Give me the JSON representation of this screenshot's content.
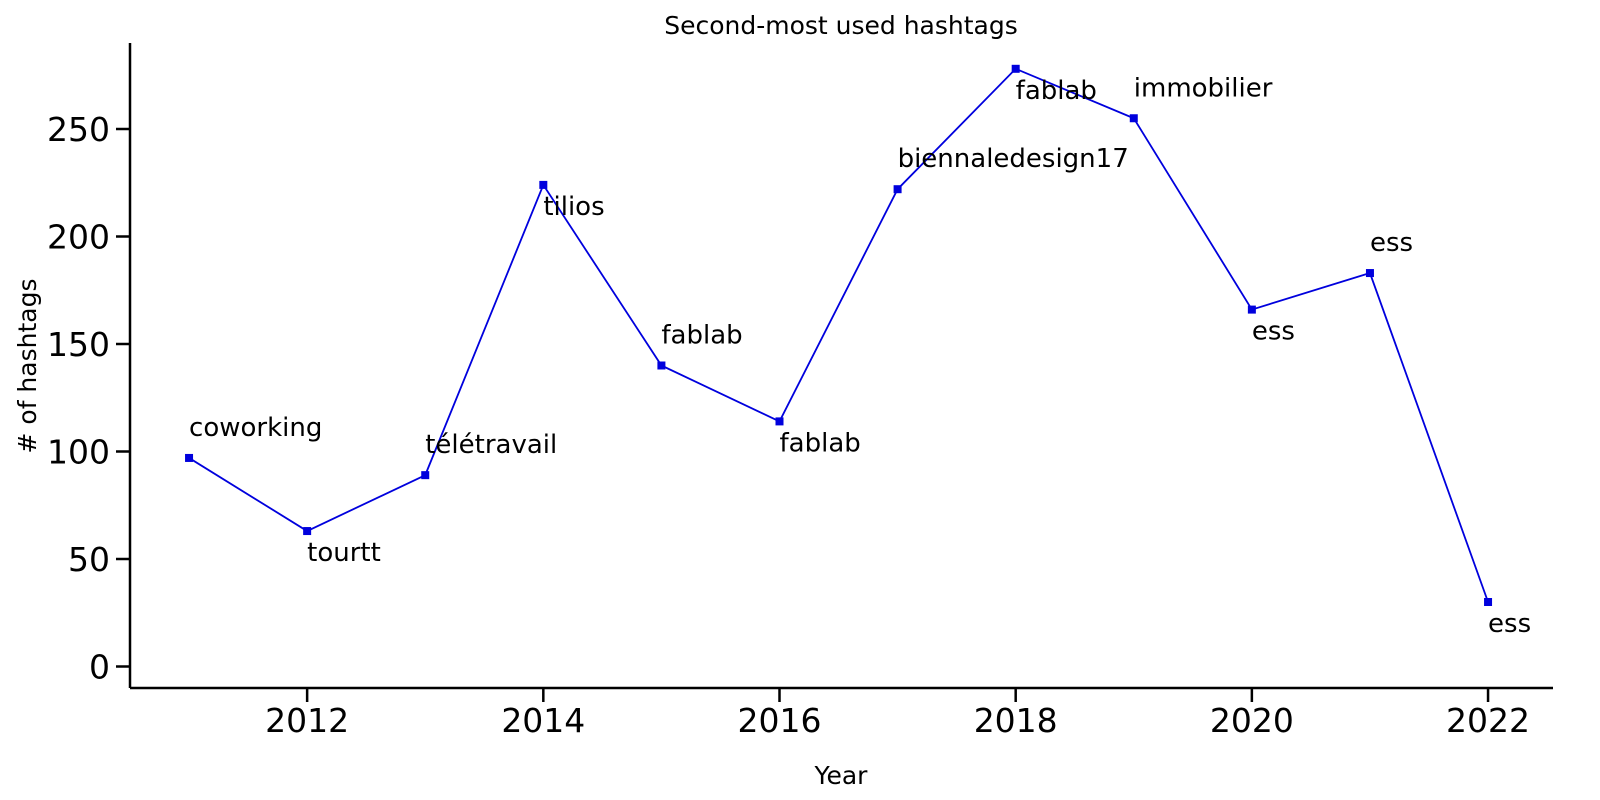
{
  "chart_data": {
    "type": "line",
    "title": "Second-most used hashtags",
    "xlabel": "Year",
    "ylabel": "# of hashtags",
    "xlim": [
      2010.5,
      2022.55
    ],
    "ylim": [
      -10,
      290
    ],
    "xticks": [
      2012,
      2014,
      2016,
      2018,
      2020,
      2022
    ],
    "yticks": [
      0,
      50,
      100,
      150,
      200,
      250
    ],
    "grid": false,
    "series_color": "#0000dd",
    "x": [
      2011,
      2012,
      2013,
      2014,
      2015,
      2016,
      2017,
      2018,
      2019,
      2020,
      2021,
      2022
    ],
    "y": [
      97,
      63,
      89,
      224,
      140,
      114,
      222,
      278,
      255,
      166,
      183,
      30
    ],
    "point_labels": [
      "coworking",
      "tourtt",
      "télétravail",
      "tilios",
      "fablab",
      "fablab",
      "biennaledesign17",
      "fablab",
      "immobilier",
      "ess",
      "ess",
      "ess"
    ],
    "label_positions": [
      "above",
      "below",
      "above",
      "below",
      "above",
      "below",
      "above",
      "below",
      "above",
      "below",
      "above",
      "below"
    ]
  }
}
